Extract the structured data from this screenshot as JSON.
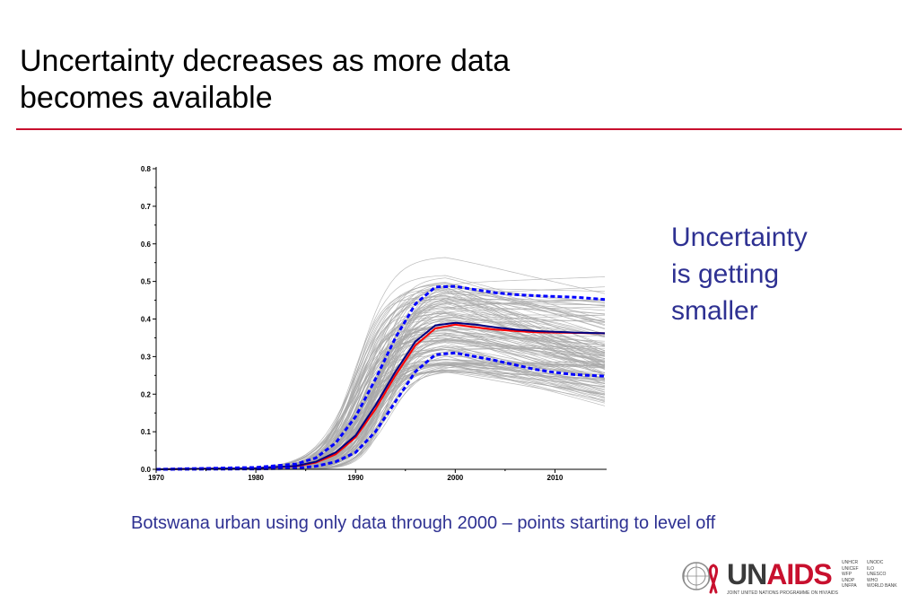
{
  "slide": {
    "title_line1": "Uncertainty decreases as more data",
    "title_line2": "becomes available",
    "accent_color": "#c8102e",
    "text_blue": "#2e3192",
    "callout_lines": [
      "Uncertainty",
      "is getting",
      "smaller"
    ],
    "caption": "Botswana urban using only data through 2000 – points starting to level off"
  },
  "logo": {
    "un": "UN",
    "aids": "AIDS",
    "tagline": "JOINT UNITED NATIONS PROGRAMME ON HIV/AIDS",
    "orgs_col1": [
      "UNHCR",
      "UNICEF",
      "WFP",
      "UNDP",
      "UNFPA"
    ],
    "orgs_col2": [
      "UNODC",
      "ILO",
      "UNESCO",
      "WHO",
      "WORLD BANK"
    ],
    "emblem_icon": "un-emblem-red-ribbon-icon"
  },
  "chart_data": {
    "type": "line",
    "title": "",
    "xlabel": "",
    "ylabel": "",
    "xlim": [
      1970,
      2015
    ],
    "ylim": [
      0,
      0.8
    ],
    "x_ticks": [
      1970,
      1980,
      1990,
      2000,
      2010
    ],
    "y_ticks": [
      "0.0",
      "0.1",
      "0.2",
      "0.3",
      "0.4",
      "0.5",
      "0.6",
      "0.7",
      "0.8"
    ],
    "grid": false,
    "legend": "none",
    "uncertainty_curves_color": "#a9a9a9",
    "series": [
      {
        "color": "#ff0000",
        "style": "solid",
        "x": [
          1970,
          1980,
          1984,
          1986,
          1988,
          1990,
          1992,
          1994,
          1996,
          1998,
          2000,
          2002,
          2004,
          2006,
          2008,
          2010,
          2012,
          2015
        ],
        "values": [
          0.0,
          0.003,
          0.008,
          0.018,
          0.04,
          0.085,
          0.16,
          0.25,
          0.33,
          0.375,
          0.385,
          0.378,
          0.372,
          0.368,
          0.365,
          0.364,
          0.363,
          0.362
        ]
      },
      {
        "color": "#000080",
        "style": "solid",
        "x": [
          1970,
          1980,
          1984,
          1986,
          1988,
          1990,
          1992,
          1994,
          1996,
          1998,
          2000,
          2002,
          2004,
          2006,
          2008,
          2010,
          2012,
          2015
        ],
        "values": [
          0.0,
          0.003,
          0.009,
          0.02,
          0.045,
          0.09,
          0.17,
          0.26,
          0.34,
          0.383,
          0.39,
          0.385,
          0.378,
          0.372,
          0.368,
          0.366,
          0.364,
          0.362
        ]
      },
      {
        "color": "#0000ff",
        "style": "dashed",
        "x": [
          1970,
          1980,
          1984,
          1986,
          1988,
          1990,
          1992,
          1994,
          1996,
          1998,
          2000,
          2002,
          2004,
          2006,
          2008,
          2010,
          2012,
          2015
        ],
        "values": [
          0.0,
          0.005,
          0.014,
          0.03,
          0.07,
          0.14,
          0.24,
          0.35,
          0.44,
          0.485,
          0.487,
          0.478,
          0.47,
          0.465,
          0.462,
          0.46,
          0.458,
          0.452
        ]
      },
      {
        "color": "#0000ff",
        "style": "dashed",
        "x": [
          1970,
          1980,
          1984,
          1986,
          1988,
          1990,
          1992,
          1994,
          1996,
          1998,
          2000,
          2002,
          2004,
          2006,
          2008,
          2010,
          2012,
          2015
        ],
        "values": [
          0.0,
          0.001,
          0.003,
          0.008,
          0.02,
          0.045,
          0.1,
          0.18,
          0.26,
          0.305,
          0.31,
          0.3,
          0.29,
          0.278,
          0.266,
          0.258,
          0.252,
          0.248
        ]
      }
    ]
  }
}
